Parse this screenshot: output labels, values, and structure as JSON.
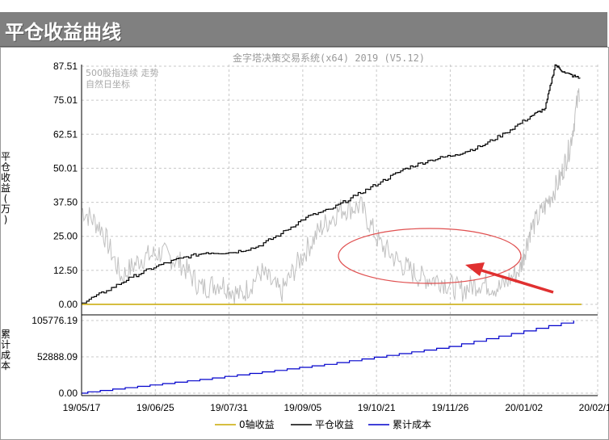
{
  "window": {
    "title": "平仓收益曲线"
  },
  "chart_data": {
    "type": "line",
    "subtitle": "金字塔决策交易系统(x64) 2019 (V5.12)",
    "notes": [
      "500股指连续 走势",
      "自然日坐标"
    ],
    "x_ticks": [
      "19/05/17",
      "19/06/25",
      "19/07/31",
      "19/09/05",
      "19/10/21",
      "19/11/26",
      "20/01/02",
      "20/02/18"
    ],
    "x_range": [
      "2019-05-17",
      "2020-02-18"
    ],
    "grid": true,
    "colors": {
      "zero_line": "#c8a800",
      "pnl": "#000000",
      "cost": "#0000cc",
      "index": "#c0c0c0",
      "annotation": "#e03030"
    },
    "top_panel": {
      "ylabel": "平仓收益(万)",
      "yticks": [
        "87.51",
        "75.01",
        "62.51",
        "50.01",
        "37.50",
        "25.00",
        "12.50",
        "0.00"
      ],
      "ylim": [
        0,
        87.51
      ],
      "series": [
        {
          "name": "平仓收益",
          "points": [
            [
              0,
              0.5
            ],
            [
              0.05,
              5
            ],
            [
              0.1,
              10
            ],
            [
              0.15,
              14
            ],
            [
              0.2,
              17
            ],
            [
              0.25,
              19
            ],
            [
              0.3,
              19
            ],
            [
              0.35,
              21
            ],
            [
              0.4,
              26
            ],
            [
              0.45,
              32
            ],
            [
              0.5,
              35
            ],
            [
              0.55,
              40
            ],
            [
              0.6,
              45
            ],
            [
              0.65,
              50
            ],
            [
              0.7,
              53
            ],
            [
              0.75,
              55
            ],
            [
              0.8,
              58
            ],
            [
              0.85,
              63
            ],
            [
              0.9,
              69
            ],
            [
              0.93,
              72
            ],
            [
              0.95,
              88
            ],
            [
              0.97,
              85
            ],
            [
              1.0,
              83
            ]
          ]
        },
        {
          "name": "0轴收益",
          "points": [
            [
              0,
              0
            ],
            [
              1,
              0
            ]
          ]
        }
      ],
      "index_trace": [
        [
          0,
          35
        ],
        [
          0.04,
          28
        ],
        [
          0.08,
          10
        ],
        [
          0.12,
          17
        ],
        [
          0.16,
          19
        ],
        [
          0.2,
          15
        ],
        [
          0.24,
          6
        ],
        [
          0.28,
          8
        ],
        [
          0.32,
          3
        ],
        [
          0.36,
          12
        ],
        [
          0.4,
          4
        ],
        [
          0.44,
          17
        ],
        [
          0.48,
          28
        ],
        [
          0.52,
          35
        ],
        [
          0.56,
          36
        ],
        [
          0.6,
          22
        ],
        [
          0.64,
          15
        ],
        [
          0.68,
          10
        ],
        [
          0.72,
          9
        ],
        [
          0.76,
          5
        ],
        [
          0.8,
          8
        ],
        [
          0.84,
          6
        ],
        [
          0.88,
          13
        ],
        [
          0.9,
          27
        ],
        [
          0.93,
          36
        ],
        [
          0.96,
          46
        ],
        [
          0.98,
          58
        ],
        [
          1.0,
          80
        ]
      ]
    },
    "bottom_panel": {
      "ylabel": "累计成本",
      "yticks": [
        "105776.19",
        "52888.09",
        "0.00"
      ],
      "ylim": [
        0,
        105776.19
      ],
      "series": [
        {
          "name": "累计成本",
          "points": [
            [
              0,
              0
            ],
            [
              0.25,
              20000
            ],
            [
              0.5,
              42000
            ],
            [
              0.75,
              68000
            ],
            [
              1.0,
              105776.19
            ]
          ]
        }
      ]
    },
    "legend": {
      "position": "bottom",
      "entries": [
        "0轴收益",
        "平仓收益",
        "累计成本"
      ]
    }
  }
}
